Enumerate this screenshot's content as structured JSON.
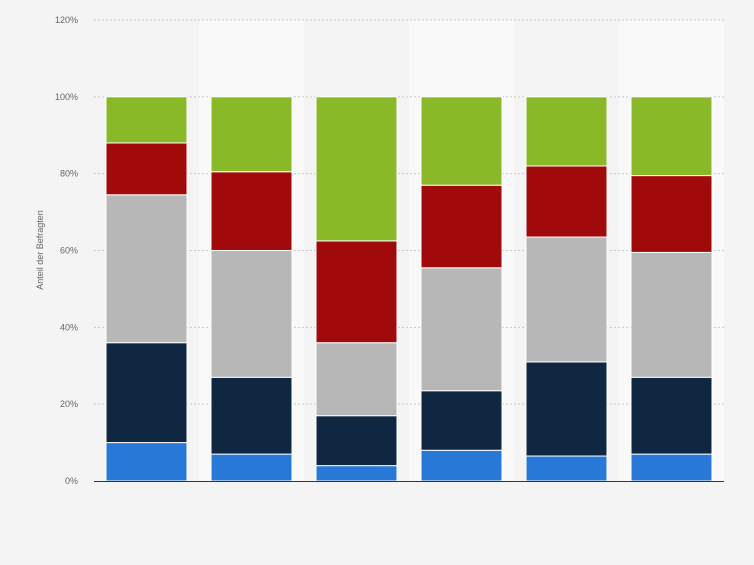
{
  "chart_data": {
    "type": "bar",
    "stacked": true,
    "xlabel": "",
    "ylabel": "Anteil der Befragten",
    "ylim": [
      0,
      120
    ],
    "y_ticks": [
      "0%",
      "20%",
      "40%",
      "60%",
      "80%",
      "100%",
      "120%"
    ],
    "y_tick_values": [
      0,
      20,
      40,
      60,
      80,
      100,
      120
    ],
    "grid": true,
    "legend": "none",
    "category_count": 6,
    "series": [
      {
        "color": "#2878d8",
        "values": [
          10,
          7,
          4,
          8,
          6.5,
          7
        ]
      },
      {
        "color": "#0f2740",
        "values": [
          26,
          20,
          13,
          15.5,
          24.5,
          20
        ]
      },
      {
        "color": "#b7b7b7",
        "values": [
          38.5,
          33,
          19,
          32,
          32.5,
          32.5
        ]
      },
      {
        "color": "#a10a0a",
        "values": [
          13.5,
          20.5,
          26.5,
          21.5,
          18.5,
          20
        ]
      },
      {
        "color": "#89b928",
        "values": [
          12,
          19.5,
          37.5,
          23,
          18,
          20.5
        ]
      }
    ]
  }
}
